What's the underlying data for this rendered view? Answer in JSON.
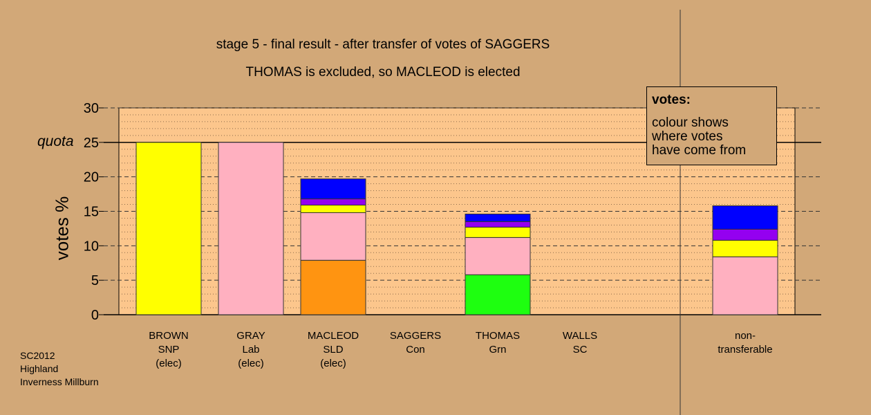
{
  "chart_data": {
    "type": "bar",
    "stacked": true,
    "title": "stage 5 - final result - after transfer of votes of SAGGERS",
    "subtitle": "THOMAS is excluded, so MACLEOD is elected",
    "ylabel": "votes %",
    "ylim": [
      0,
      30
    ],
    "yticks": [
      "0",
      "5",
      "10",
      "15",
      "20",
      "25",
      "30"
    ],
    "quota_label": "quota",
    "quota_value": 25,
    "legend": {
      "title": "votes:",
      "body": [
        "colour shows",
        "where votes",
        "have come from"
      ],
      "placement": "top-right"
    },
    "categories": [
      {
        "name": "BROWN",
        "party": "SNP",
        "status": "(elec)"
      },
      {
        "name": "GRAY",
        "party": "Lab",
        "status": "(elec)"
      },
      {
        "name": "MACLEOD",
        "party": "SLD",
        "status": "(elec)"
      },
      {
        "name": "SAGGERS",
        "party": "Con",
        "status": ""
      },
      {
        "name": "THOMAS",
        "party": "Grn",
        "status": ""
      },
      {
        "name": "WALLS",
        "party": "SC",
        "status": ""
      },
      {
        "name": "non-",
        "party": "transferable",
        "status": ""
      }
    ],
    "source_colors": {
      "SNP": "#ffff00",
      "Lab": "#ffb0c0",
      "SLD": "#ff9411",
      "Grn": "#1eff10",
      "SC": "#9400f0",
      "Con": "#0000ff"
    },
    "stacks": [
      [
        {
          "source": "SNP",
          "value": 25.0
        }
      ],
      [
        {
          "source": "Lab",
          "value": 25.0
        }
      ],
      [
        {
          "source": "SLD",
          "value": 7.9
        },
        {
          "source": "Lab",
          "value": 6.9
        },
        {
          "source": "SNP",
          "value": 1.1
        },
        {
          "source": "SC",
          "value": 0.9
        },
        {
          "source": "Con",
          "value": 2.9
        }
      ],
      [],
      [
        {
          "source": "Grn",
          "value": 5.8
        },
        {
          "source": "Lab",
          "value": 5.4
        },
        {
          "source": "SNP",
          "value": 1.5
        },
        {
          "source": "SC",
          "value": 0.8
        },
        {
          "source": "Con",
          "value": 1.1
        }
      ],
      [],
      [
        {
          "source": "Lab",
          "value": 8.4
        },
        {
          "source": "SNP",
          "value": 2.4
        },
        {
          "source": "SC",
          "value": 1.6
        },
        {
          "source": "Con",
          "value": 3.4
        }
      ]
    ]
  },
  "footer": [
    "SC2012",
    "Highland",
    "Inverness Millburn"
  ]
}
